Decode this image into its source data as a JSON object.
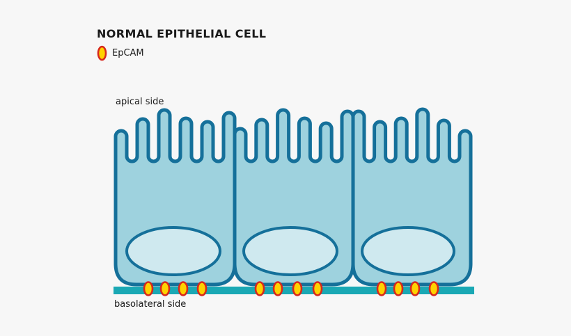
{
  "title": "NORMAL EPITHELIAL CELL",
  "legend": {
    "epcam_icon": "epcam-oval-icon",
    "epcam_label": "EpCAM"
  },
  "diagram": {
    "apical_label": "apical side",
    "basolateral_label": "basolateral side",
    "cell_count": 3,
    "epcam_molecules_per_cell": 4
  },
  "colors": {
    "background": "#f7f7f7",
    "cell_fill": "#9ed2de",
    "cell_outline": "#15709a",
    "nucleus_fill": "#cfe9ef",
    "membrane": "#1aa8b4",
    "epcam_fill": "#ffd200",
    "epcam_outline": "#d7281d",
    "text": "#1a1a1a"
  }
}
